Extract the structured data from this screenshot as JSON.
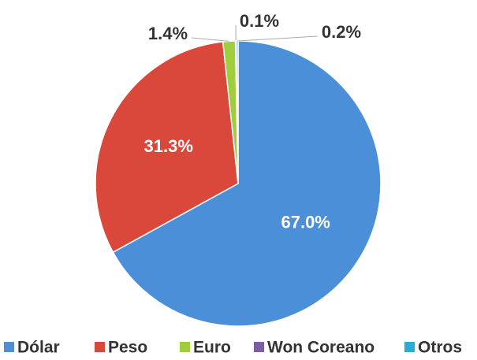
{
  "chart_data": {
    "type": "pie",
    "categories": [
      "Dólar",
      "Peso",
      "Euro",
      "Won Coreano",
      "Otros"
    ],
    "values": [
      67.0,
      31.3,
      1.4,
      0.1,
      0.2
    ],
    "value_labels": [
      "67.0%",
      "31.3%",
      "1.4%",
      "0.1%",
      "0.2%"
    ],
    "colors": [
      "#4a8fd8",
      "#d9483b",
      "#9fcd3c",
      "#7b5ea7",
      "#2aacd9"
    ],
    "legend": "bottom"
  }
}
